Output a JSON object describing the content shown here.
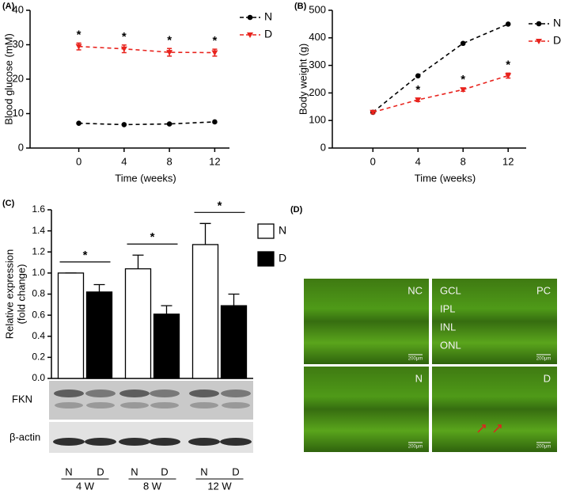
{
  "chart_data": [
    {
      "type": "line",
      "panel_label": "(A)",
      "xlabel": "Time (weeks)",
      "ylabel": "Blood glucose (mM)",
      "x": [
        0,
        4,
        8,
        12
      ],
      "xlim": [
        -4.3,
        13.3
      ],
      "xticks": [
        0,
        4,
        8,
        12
      ],
      "ylim": [
        0,
        40
      ],
      "yticks": [
        0,
        10,
        20,
        30,
        40
      ],
      "legend": "upper right",
      "series": [
        {
          "name": "N",
          "color": "#000000",
          "marker": "circle",
          "linestyle": "dashed",
          "values": [
            7.2,
            6.8,
            7.0,
            7.6
          ]
        },
        {
          "name": "D",
          "color": "#e8231d",
          "marker": "triangle-down",
          "linestyle": "dashed",
          "values": [
            29.5,
            28.8,
            27.8,
            27.7
          ],
          "errors": [
            1.0,
            1.1,
            1.1,
            1.0
          ],
          "point_labels": [
            "*",
            "*",
            "*",
            "*"
          ]
        }
      ]
    },
    {
      "type": "line",
      "panel_label": "(B)",
      "xlabel": "Time (weeks)",
      "ylabel": "Body weight (g)",
      "x": [
        0,
        4,
        8,
        12
      ],
      "xlim": [
        -3.6,
        13.6
      ],
      "xticks": [
        0,
        4,
        8,
        12
      ],
      "ylim": [
        0,
        500
      ],
      "yticks": [
        0,
        100,
        200,
        300,
        400,
        500
      ],
      "legend": "upper right",
      "series": [
        {
          "name": "N",
          "color": "#000000",
          "marker": "circle",
          "linestyle": "dashed",
          "values": [
            130,
            262,
            380,
            450
          ]
        },
        {
          "name": "D",
          "color": "#e8231d",
          "marker": "triangle-down",
          "linestyle": "dashed",
          "values": [
            130,
            175,
            212,
            263
          ],
          "errors": [
            5,
            6,
            6,
            9
          ],
          "point_labels": [
            null,
            "*",
            "*",
            "*"
          ]
        }
      ]
    },
    {
      "type": "bar",
      "panel_label": "(C)",
      "ylabel": [
        "Relative expression",
        "(fold change)"
      ],
      "categories": [
        "4 W",
        "8 W",
        "12 W"
      ],
      "ylim": [
        0,
        1.6
      ],
      "yticks": [
        {
          "value": 0,
          "label": "0.0"
        },
        0.2,
        0.4,
        0.6,
        0.8,
        {
          "value": 1,
          "label": "1.0"
        },
        1.2,
        1.4,
        1.6
      ],
      "legend": "right",
      "series": [
        {
          "name": "N",
          "color": "#ffffff",
          "values": [
            1.0,
            1.04,
            1.27
          ],
          "errors": [
            0,
            0.13,
            0.2
          ]
        },
        {
          "name": "D",
          "color": "#000000",
          "values": [
            0.82,
            0.61,
            0.69
          ],
          "errors": [
            0.07,
            0.08,
            0.11
          ]
        }
      ],
      "significance": [
        "*",
        "*",
        "*"
      ]
    }
  ],
  "blot": {
    "row_labels": [
      "FKN",
      "β-actin"
    ],
    "lane_labels": [
      "N",
      "D",
      "N",
      "D",
      "N",
      "D"
    ]
  },
  "micrograph": {
    "panel_label": "(D)",
    "images": [
      {
        "label": "NC",
        "scale_bar": "200μm"
      },
      {
        "label": "PC",
        "scale_bar": "200μm",
        "layers": [
          "GCL",
          "IPL",
          "INL",
          "ONL"
        ]
      },
      {
        "label": "N",
        "scale_bar": "200μm"
      },
      {
        "label": "D",
        "scale_bar": "200μm"
      }
    ]
  }
}
